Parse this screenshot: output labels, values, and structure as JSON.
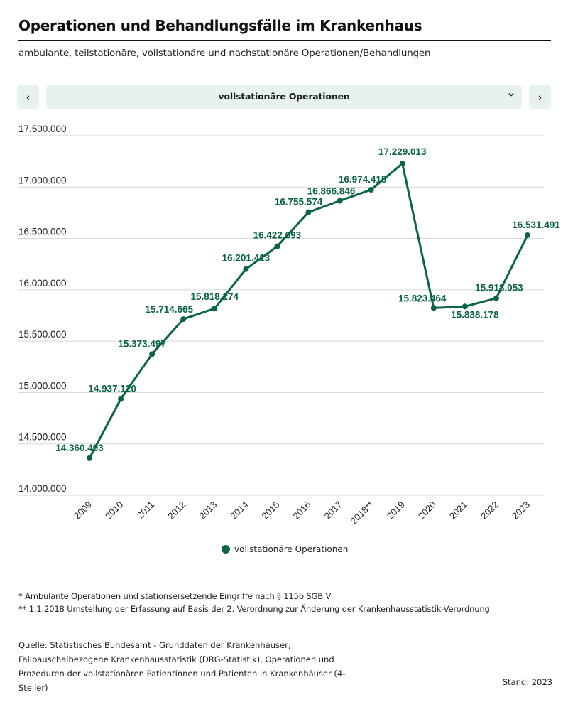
{
  "header": {
    "title": "Operationen und Behandlungsfälle im Krankenhaus",
    "subtitle": "ambulante, teilstationäre, vollstationäre und nachstationäre Operationen/Behandlungen"
  },
  "selector": {
    "prev_label": "‹",
    "next_label": "›",
    "selected": "vollstationäre Operationen",
    "chevron": "⌄"
  },
  "chart_data": {
    "type": "line",
    "title": "Operationen und Behandlungsfälle im Krankenhaus",
    "xlabel": "",
    "ylabel": "",
    "categories": [
      "2009",
      "2010",
      "2011",
      "2012",
      "2013",
      "2014",
      "2015",
      "2016",
      "2017",
      "2018**",
      "2019",
      "2020",
      "2021",
      "2022",
      "2023"
    ],
    "series": [
      {
        "name": "vollstationäre Operationen",
        "color": "#0b6447",
        "values": [
          14360493,
          14937120,
          15373497,
          15714665,
          15818274,
          16201413,
          16422693,
          16755574,
          16866846,
          16974415,
          17229013,
          15823464,
          15838178,
          15918053,
          16531491
        ],
        "labels": [
          "14.360.493",
          "14.937.120",
          "15.373.497",
          "15.714.665",
          "15.818.274",
          "16.201.413",
          "16.422.693",
          "16.755.574",
          "16.866.846",
          "16.974.415",
          "17.229.013",
          "15.823.464",
          "15.838.178",
          "15.918.053",
          "16.531.491"
        ]
      }
    ],
    "ylim": [
      14000000,
      17500000
    ],
    "yticks": [
      14000000,
      14500000,
      15000000,
      15500000,
      16000000,
      16500000,
      17000000,
      17500000
    ],
    "ytick_labels": [
      "14.000.000",
      "14.500.000",
      "15.000.000",
      "15.500.000",
      "16.000.000",
      "16.500.000",
      "17.000.000",
      "17.500.000"
    ],
    "grid": true,
    "legend": "bottom-center"
  },
  "legend": {
    "label": "vollstationäre Operationen"
  },
  "footnotes": {
    "note1": "* Ambulante Operationen und stationsersetzende Eingriffe nach § 115b SGB V",
    "note2": "** 1.1.2018 Umstellung der Erfassung auf Basis der 2. Verordnung zur Änderung der Krankenhausstatistik-Verordnung"
  },
  "source": {
    "text": "Quelle: Statistisches Bundesamt - Grunddaten der Krankenhäuser, Fallpauschalbezogene Krankenhausstatistik (DRG-Statistik), Operationen und Prozeduren der vollstationären Patientinnen und Patienten in Krankenhäuser (4-Steller)",
    "stand": "Stand: 2023"
  }
}
